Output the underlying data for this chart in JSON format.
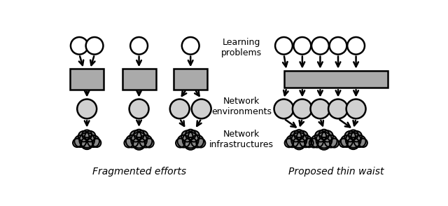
{
  "fig_width": 6.4,
  "fig_height": 2.94,
  "bg_color": "#ffffff",
  "left_title": "Fragmented efforts",
  "right_title": "Proposed thin waist",
  "label_learning": "Learning\nproblems",
  "label_network_env": "Network\nenvironments",
  "label_network_infra": "Network\ninfrastructures",
  "oval_white_color": "#ffffff",
  "oval_light_color": "#d0d0d0",
  "cloud_dark_color": "#888888",
  "rect_gray_color": "#aaaaaa",
  "arrow_color": "#000000",
  "edge_color": "#000000",
  "linewidth": 1.8
}
